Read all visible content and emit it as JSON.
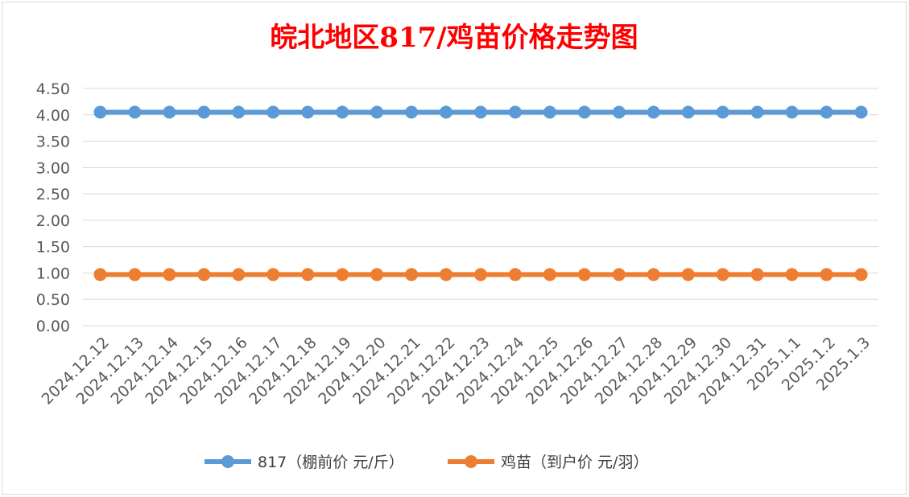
{
  "chart_data": {
    "type": "line",
    "title": "皖北地区817/鸡苗价格走势图",
    "categories": [
      "2024.12.12",
      "2024.12.13",
      "2024.12.14",
      "2024.12.15",
      "2024.12.16",
      "2024.12.17",
      "2024.12.18",
      "2024.12.19",
      "2024.12.20",
      "2024.12.21",
      "2024.12.22",
      "2024.12.23",
      "2024.12.24",
      "2024.12.25",
      "2024.12.26",
      "2024.12.27",
      "2024.12.28",
      "2024.12.29",
      "2024.12.30",
      "2024.12.31",
      "2025.1.1",
      "2025.1.2",
      "2025.1.3"
    ],
    "series": [
      {
        "name": "817（棚前价 元/斤）",
        "color": "#5b9bd5",
        "values": [
          4.05,
          4.05,
          4.05,
          4.05,
          4.05,
          4.05,
          4.05,
          4.05,
          4.05,
          4.05,
          4.05,
          4.05,
          4.05,
          4.05,
          4.05,
          4.05,
          4.05,
          4.05,
          4.05,
          4.05,
          4.05,
          4.05,
          4.05
        ]
      },
      {
        "name": "鸡苗（到户价 元/羽）",
        "color": "#ed7d31",
        "values": [
          0.97,
          0.97,
          0.97,
          0.97,
          0.97,
          0.97,
          0.97,
          0.97,
          0.97,
          0.97,
          0.97,
          0.97,
          0.97,
          0.97,
          0.97,
          0.97,
          0.97,
          0.97,
          0.97,
          0.97,
          0.97,
          0.97,
          0.97
        ]
      }
    ],
    "ylim": [
      0,
      4.5
    ],
    "yticks": [
      "0.00",
      "0.50",
      "1.00",
      "1.50",
      "2.00",
      "2.50",
      "3.00",
      "3.50",
      "4.00",
      "4.50"
    ],
    "grid": true,
    "legend_position": "bottom"
  }
}
